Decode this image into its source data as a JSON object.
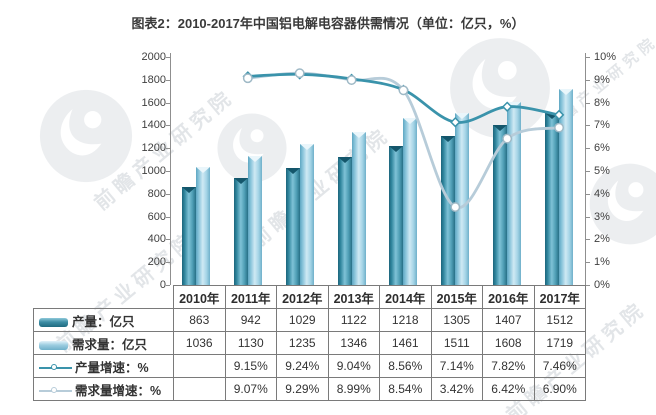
{
  "title": "图表2：2010-2017年中国铝电解电容器供需情况（单位：亿只，%）",
  "watermark": {
    "text": "前瞻产业研究院"
  },
  "chart_data": {
    "type": "bar",
    "subtype": "bar+line combo with data table",
    "categories": [
      "2010年",
      "2011年",
      "2012年",
      "2013年",
      "2014年",
      "2015年",
      "2016年",
      "2017年"
    ],
    "left_axis": {
      "min": 0,
      "max": 2000,
      "step": 200,
      "unit": "亿只"
    },
    "right_axis": {
      "min": 0,
      "max": 10,
      "step": 1,
      "unit": "%"
    },
    "grid": false,
    "legend_position": "table-rows-left",
    "bar_series": [
      {
        "name": "产量：亿只",
        "values": [
          863,
          942,
          1029,
          1122,
          1218,
          1305,
          1407,
          1512
        ],
        "color": "#2a7890",
        "notch_color": "#14566b"
      },
      {
        "name": "需求量：亿只",
        "values": [
          1036,
          1130,
          1235,
          1346,
          1461,
          1511,
          1608,
          1719
        ],
        "color": "#8ec6dc",
        "notch_color": "#eaf6fb"
      }
    ],
    "line_series": [
      {
        "name": "产量增速：%",
        "values": [
          null,
          9.15,
          9.24,
          9.04,
          8.56,
          7.14,
          7.82,
          7.46
        ],
        "color": "#3a93ab",
        "marker": "diamond"
      },
      {
        "name": "需求量增速：%",
        "values": [
          null,
          9.07,
          9.29,
          8.99,
          8.54,
          3.42,
          6.42,
          6.9
        ],
        "color": "#b7ccd9",
        "marker": "circle"
      }
    ]
  }
}
